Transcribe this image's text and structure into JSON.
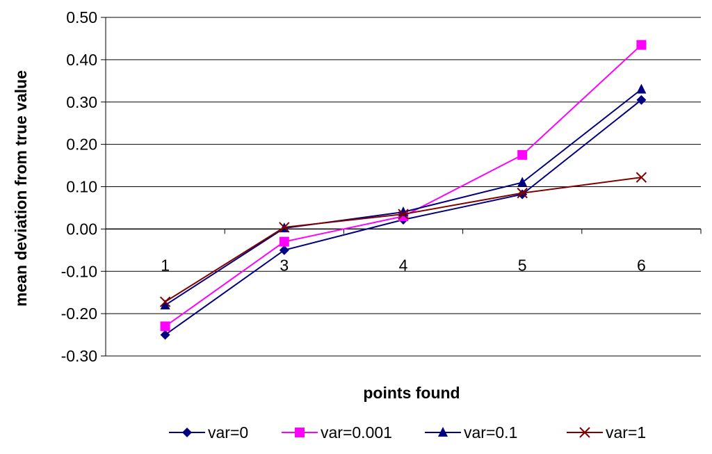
{
  "chart_data": {
    "type": "line",
    "categories": [
      "1",
      "3",
      "4",
      "5",
      "6"
    ],
    "xlabel": "points found",
    "ylabel": "mean deviation from true value",
    "ylim": [
      -0.3,
      0.5
    ],
    "ytick_step": 0.1,
    "ytick_labels": [
      "0.50",
      "0.40",
      "0.30",
      "0.20",
      "0.10",
      "0.00",
      "-0.10",
      "-0.20",
      "-0.30"
    ],
    "grid": "horizontal",
    "legend": "bottom",
    "series": [
      {
        "name": "var=0",
        "values": [
          -0.25,
          -0.05,
          0.022,
          0.082,
          0.305
        ],
        "color": "#000080",
        "marker": "diamond"
      },
      {
        "name": "var=0.001",
        "values": [
          -0.23,
          -0.03,
          0.03,
          0.175,
          0.435
        ],
        "color": "#FF00FF",
        "marker": "square"
      },
      {
        "name": "var=0.1",
        "values": [
          -0.18,
          0.002,
          0.04,
          0.11,
          0.33
        ],
        "color": "#000080",
        "marker": "triangle"
      },
      {
        "name": "var=1",
        "values": [
          -0.172,
          0.004,
          0.035,
          0.085,
          0.122
        ],
        "color": "#800000",
        "marker": "x"
      }
    ]
  }
}
